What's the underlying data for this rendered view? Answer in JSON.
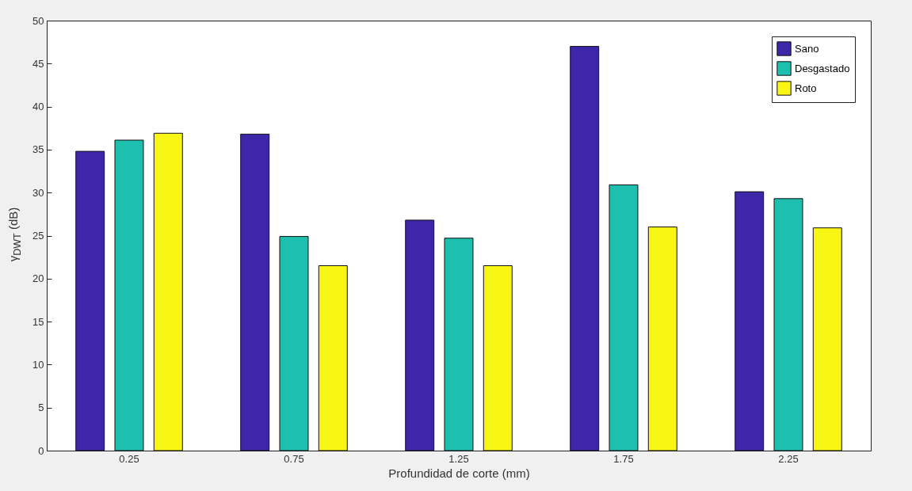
{
  "chart_data": {
    "type": "bar",
    "xlabel": "Profundidad de corte (mm)",
    "ylabel": "γ$_{DWT}$ (dB)",
    "categories": [
      "0.25",
      "0.75",
      "1.25",
      "1.75",
      "2.25"
    ],
    "series": [
      {
        "name": "Sano",
        "color": "#3e26a8",
        "values": [
          34.8,
          36.8,
          26.8,
          47.0,
          30.1
        ]
      },
      {
        "name": "Desgastado",
        "color": "#1fbfb0",
        "values": [
          36.1,
          24.9,
          24.7,
          30.9,
          29.3
        ]
      },
      {
        "name": "Roto",
        "color": "#f9f515",
        "values": [
          36.9,
          21.5,
          21.5,
          26.0,
          25.9
        ]
      }
    ],
    "ylim": [
      0,
      50
    ],
    "yticks": [
      0,
      5,
      10,
      15,
      20,
      25,
      30,
      35,
      40,
      45,
      50
    ],
    "grid": false,
    "legend": "top right"
  }
}
